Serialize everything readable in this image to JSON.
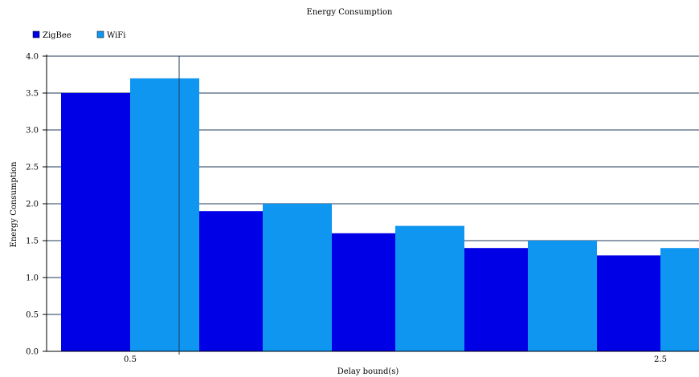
{
  "chart_data": {
    "type": "bar",
    "title": "Energy Consumption",
    "xlabel": "Delay bound(s)",
    "ylabel": "Energy Consumption",
    "ylim": [
      0,
      4.0
    ],
    "yticks": [
      "0.0",
      "0.5",
      "1.0",
      "1.5",
      "2.0",
      "2.5",
      "3.0",
      "3.5",
      "4.0"
    ],
    "x_tick_labels": [
      "0.5",
      "",
      "",
      "",
      "2.5"
    ],
    "grid": "horizontal",
    "legend_position": "top-left",
    "series": [
      {
        "name": "ZigBee",
        "color": "#0000e6",
        "values": [
          3.5,
          1.9,
          1.6,
          1.4,
          1.3
        ]
      },
      {
        "name": "WiFi",
        "color": "#0f96f0",
        "values": [
          3.7,
          2.0,
          1.7,
          1.5,
          1.4
        ]
      }
    ]
  }
}
